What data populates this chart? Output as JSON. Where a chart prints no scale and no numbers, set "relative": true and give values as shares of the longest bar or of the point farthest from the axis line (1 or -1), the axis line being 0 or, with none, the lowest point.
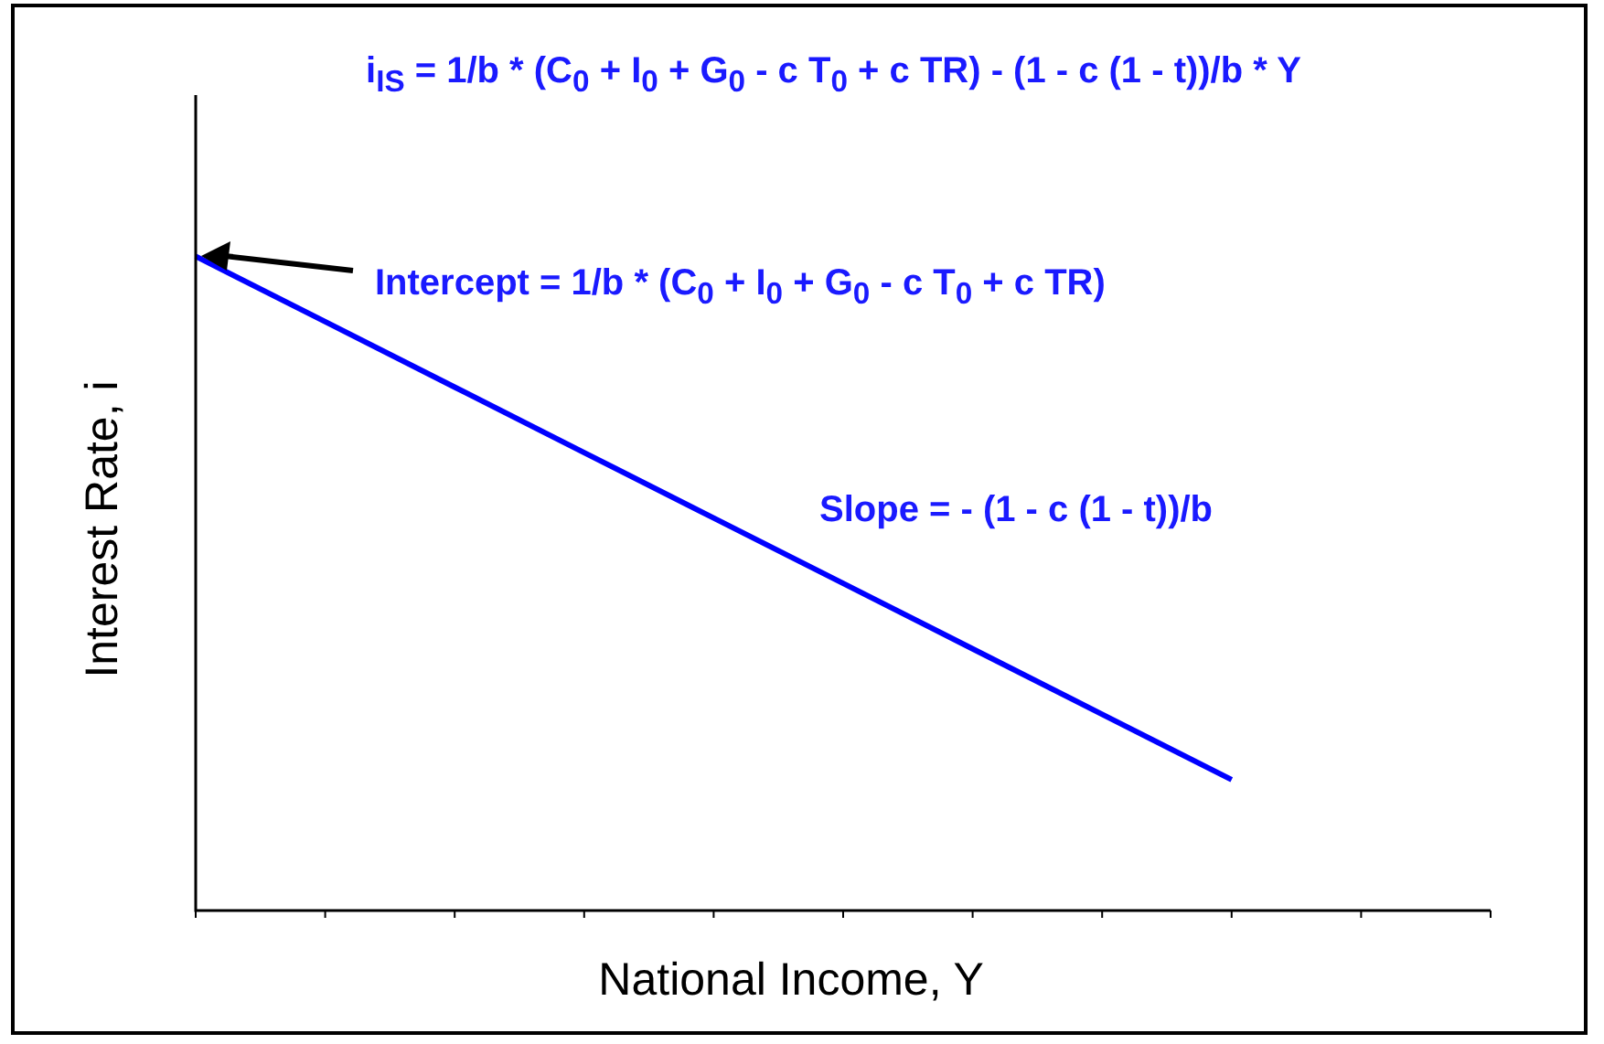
{
  "chart_data": {
    "type": "line",
    "relative": true,
    "xlabel": "National Income, Y",
    "ylabel": "Interest Rate, i",
    "categories": [
      null,
      null,
      null,
      null,
      null,
      null,
      null,
      null,
      null,
      null,
      null
    ],
    "series": [
      {
        "color": "#0000ff",
        "values": [
          1,
          0.9,
          0.8,
          0.7,
          0.6,
          0.5,
          0.4,
          0.3,
          0.2,
          null,
          null
        ]
      }
    ],
    "annotations": [
      "i$_{IS}$ = 1/b * (C$_{0}$ + I$_{0}$ + G$_{0}$ - c T$_{0}$ + c TR) - (1 - c (1 - t))/b * Y",
      "Intercept = 1/b * (C$_{0}$ + I$_{0}$ + G$_{0}$ - c T$_{0}$ + c TR)",
      "Slope = - (1 - c (1 - t))/b"
    ],
    "tick_labels": false,
    "legend": false,
    "marker": "none",
    "line_style": "solid"
  }
}
